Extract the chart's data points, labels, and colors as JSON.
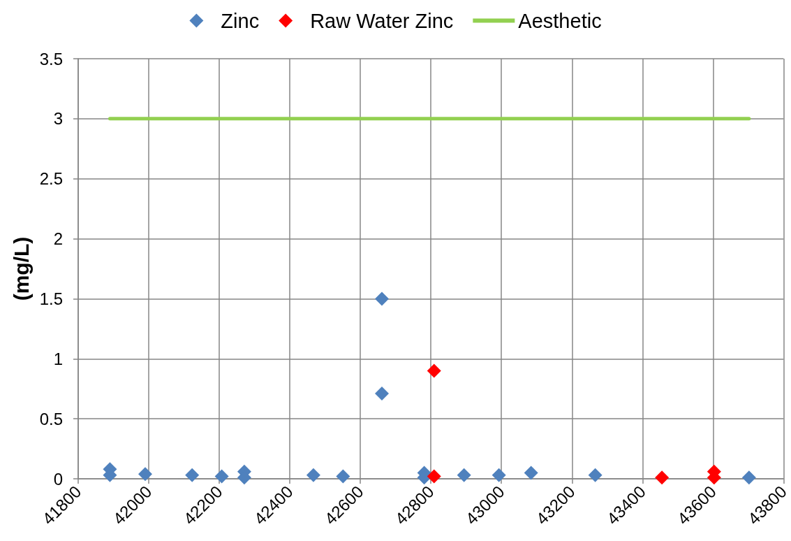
{
  "chart_data": {
    "type": "scatter",
    "ylabel": "(mg/L)",
    "xlim": [
      41800,
      43800
    ],
    "xticks": [
      41800,
      42000,
      42200,
      42400,
      42600,
      42800,
      43000,
      43200,
      43400,
      43600,
      43800
    ],
    "ylim": [
      0,
      3.5
    ],
    "yticks": [
      0,
      0.5,
      1,
      1.5,
      2,
      2.5,
      3,
      3.5
    ],
    "grid": true,
    "legend": "top",
    "marker": "diamond",
    "series": [
      {
        "name": "Zinc",
        "color": "#4f81bd",
        "x": [
          41890,
          41890,
          41990,
          42123,
          42207,
          42271,
          42271,
          42467,
          42551,
          42661,
          42661,
          42781,
          42781,
          42894,
          42993,
          43084,
          43266,
          43702
        ],
        "values": [
          0.08,
          0.03,
          0.04,
          0.03,
          0.02,
          0.06,
          0.01,
          0.03,
          0.02,
          1.5,
          0.71,
          0.05,
          0.01,
          0.03,
          0.03,
          0.05,
          0.03,
          0.01
        ]
      },
      {
        "name": "Raw Water Zinc",
        "color": "#ff0000",
        "x": [
          42809,
          42809,
          43455,
          43603,
          43603
        ],
        "values": [
          0.9,
          0.02,
          0.01,
          0.06,
          0.01
        ]
      },
      {
        "name": "Aesthetic",
        "type": "line",
        "color": "#92d050",
        "marker": "none",
        "line_style": "solid",
        "x": [
          41890,
          43702
        ],
        "values": [
          3,
          3
        ]
      }
    ]
  }
}
